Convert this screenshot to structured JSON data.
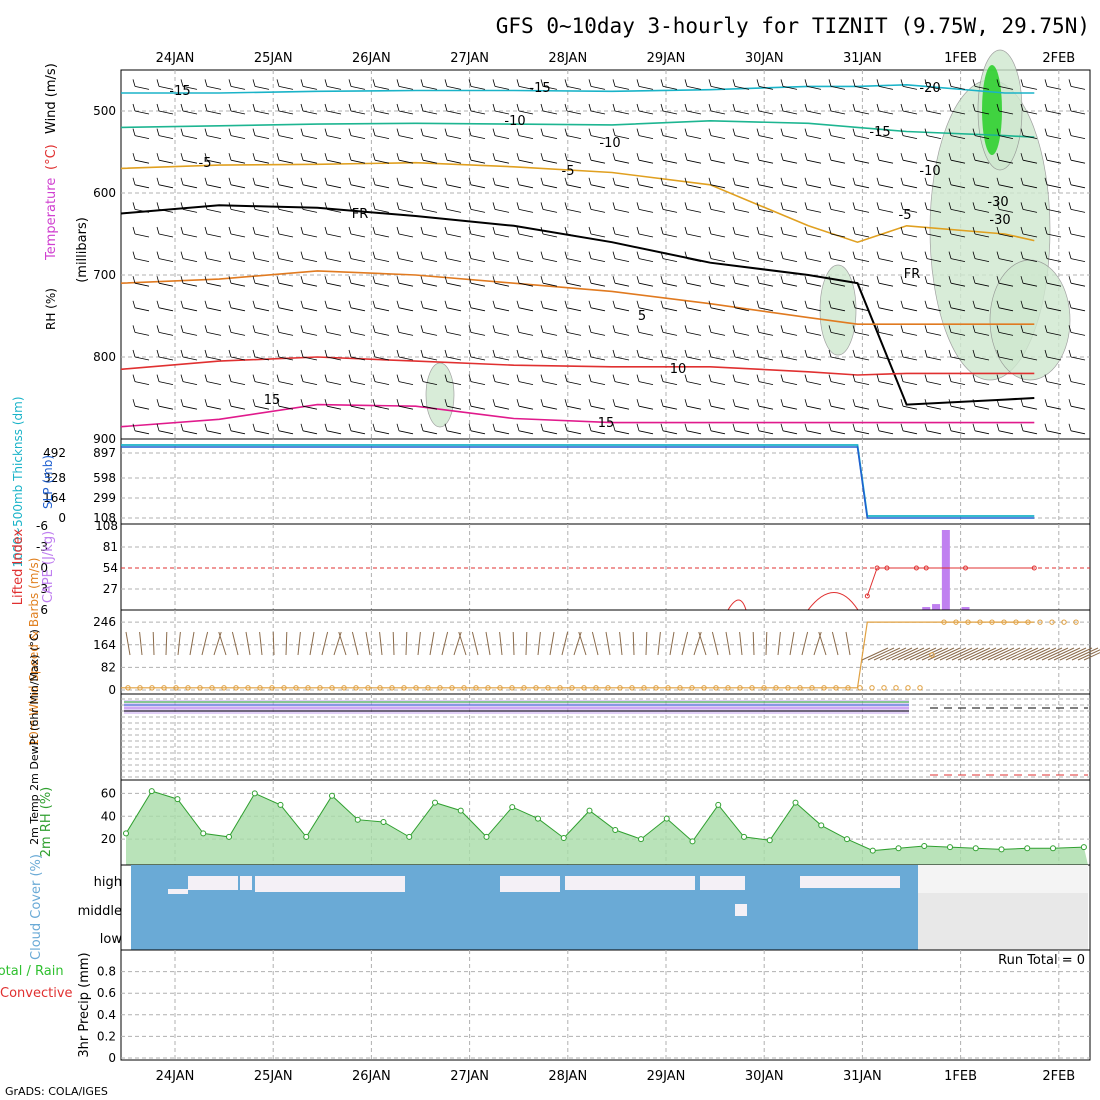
{
  "title": "GFS 0~10day 3-hourly for TIZNIT (9.75W, 29.75N)",
  "credit": "GrADS: COLA/IGES",
  "dates": [
    "24JAN",
    "25JAN",
    "26JAN",
    "27JAN",
    "28JAN",
    "29JAN",
    "30JAN",
    "31JAN",
    "1FEB",
    "2FEB"
  ],
  "colors": {
    "temp_m15": "#1ab3c8",
    "temp_m10": "#1db591",
    "temp_m5": "#e0a020",
    "temp_fr": "#000000",
    "temp_5": "#e07a20",
    "temp_10": "#e03030",
    "temp_15": "#e01a8c",
    "thickness": "#1ab3c8",
    "slp": "#2060d0",
    "cape": "#c080f0",
    "li": "#e03030",
    "wind": "#e0a040",
    "barb": "#8a6a4a",
    "rh": "#30a030",
    "cloud": "#6aaad6"
  },
  "chart_data": [
    {
      "id": "upper-air",
      "type": "line",
      "ylabel_parts": [
        "RH (%)",
        "Temperature",
        "(°C)",
        "Wind (m/s)"
      ],
      "ylabel2": "(millibars)",
      "y_ticks": [
        "500",
        "600",
        "700",
        "800",
        "900"
      ],
      "ylim": [
        450,
        900
      ],
      "y_reversed": true,
      "contour_labels": [
        "-15",
        "-15",
        "-20",
        "-10",
        "-15",
        "-10",
        "-5",
        "-5",
        "-10",
        "-5",
        "FR",
        "FR",
        "5",
        "10",
        "15",
        "15",
        "-30",
        "-30"
      ],
      "series": [
        {
          "name": "-15",
          "level_mb": [
            478,
            478,
            476,
            475,
            475,
            476,
            474,
            470,
            470,
            468,
            478,
            478
          ]
        },
        {
          "name": "-10",
          "level_mb": [
            520,
            518,
            516,
            515,
            516,
            517,
            512,
            515,
            520,
            525,
            530,
            532
          ]
        },
        {
          "name": "-5",
          "level_mb": [
            570,
            566,
            565,
            563,
            568,
            575,
            590,
            640,
            660,
            640,
            650,
            658
          ]
        },
        {
          "name": "FR",
          "level_mb": [
            625,
            615,
            618,
            628,
            640,
            660,
            685,
            700,
            710,
            858,
            852,
            850
          ]
        },
        {
          "name": "5",
          "level_mb": [
            710,
            705,
            695,
            700,
            710,
            720,
            735,
            752,
            760,
            760,
            760,
            760
          ]
        },
        {
          "name": "10",
          "level_mb": [
            815,
            805,
            800,
            805,
            810,
            812,
            812,
            818,
            822,
            820,
            820,
            820
          ]
        },
        {
          "name": "15",
          "level_mb": [
            885,
            876,
            858,
            860,
            875,
            880,
            880,
            880,
            880,
            880,
            880,
            880
          ]
        }
      ]
    },
    {
      "id": "thickness-slp",
      "type": "line",
      "ylabel_left": "1000~500mb Thicknss (dm)",
      "ylabel_right": "SLP (mb)",
      "ticks_left": [
        "492",
        "328",
        "164",
        "0"
      ],
      "ticks_right": [
        "897",
        "598",
        "299",
        "108"
      ],
      "x": [
        0,
        1,
        2,
        3,
        4,
        5,
        6,
        7,
        7.5,
        7.6,
        8,
        9,
        9.3
      ],
      "thickness_dm": [
        492,
        492,
        492,
        492,
        492,
        492,
        492,
        492,
        492,
        0,
        0,
        0,
        0
      ],
      "slp_mb": [
        897,
        897,
        897,
        897,
        897,
        897,
        897,
        897,
        897,
        108,
        108,
        108,
        108
      ]
    },
    {
      "id": "li-cape",
      "type": "bar",
      "ylabel_left": "Lifted Index",
      "ylabel_right": "CAPE (J/kg)",
      "ticks_left": [
        "-6",
        "-3",
        "0",
        "3",
        "6"
      ],
      "ticks_right": [
        "108",
        "81",
        "54",
        "27",
        ""
      ],
      "cape_bars": [
        {
          "x": 8.2,
          "value": 4
        },
        {
          "x": 8.3,
          "value": 8
        },
        {
          "x": 8.4,
          "value": 108
        },
        {
          "x": 8.6,
          "value": 4
        }
      ],
      "li_values": [
        {
          "x": 7.6,
          "value": 4
        },
        {
          "x": 7.7,
          "value": 0
        },
        {
          "x": 7.8,
          "value": 0
        },
        {
          "x": 8.1,
          "value": 0
        },
        {
          "x": 8.2,
          "value": 0
        },
        {
          "x": 8.6,
          "value": 0
        },
        {
          "x": 9.3,
          "value": 0
        }
      ]
    },
    {
      "id": "wind10m",
      "type": "line",
      "ylabel": "10m Wind Speed & Barbs (m/s)",
      "y_ticks": [
        "246",
        "164",
        "82",
        "0"
      ],
      "ylim": [
        0,
        290
      ],
      "wind_mps": [
        8,
        8,
        8,
        8,
        8,
        8,
        8,
        8,
        8,
        246,
        246,
        246,
        246
      ],
      "x": [
        0,
        1,
        2,
        3,
        4,
        5,
        6,
        7,
        7.5,
        7.6,
        8,
        9,
        9.3
      ]
    },
    {
      "id": "temp2m",
      "type": "line",
      "ylabel": "2m Temp 2m DewPt (6hr Min/Max) (°C)"
    },
    {
      "id": "rh2m",
      "type": "area",
      "ylabel": "2m RH (%)",
      "y_ticks": [
        "60",
        "40",
        "20"
      ],
      "ylim": [
        0,
        70
      ],
      "x": [
        0,
        0.25,
        0.5,
        0.75,
        1,
        1.25,
        1.5,
        1.75,
        2,
        2.25,
        2.5,
        2.75,
        3,
        3.25,
        3.5,
        3.75,
        4,
        4.25,
        4.5,
        4.75,
        5,
        5.25,
        5.5,
        5.75,
        6,
        6.25,
        6.5,
        6.75,
        7,
        7.25,
        7.5,
        7.75,
        8,
        8.25,
        8.5,
        8.75,
        9,
        9.3
      ],
      "rh_pct": [
        25,
        62,
        55,
        25,
        22,
        60,
        50,
        22,
        58,
        37,
        35,
        22,
        52,
        45,
        22,
        48,
        38,
        21,
        45,
        28,
        20,
        38,
        18,
        50,
        22,
        19,
        52,
        32,
        20,
        10,
        12,
        14,
        13,
        12,
        11,
        12,
        12,
        13
      ]
    },
    {
      "id": "cloud",
      "type": "heatmap",
      "ylabel": "Cloud Cover (%)",
      "levels": [
        "high",
        "middle",
        "low"
      ]
    },
    {
      "id": "precip",
      "type": "bar",
      "ylabel_left": "Total / Rain",
      "ylabel_left2": "Convective",
      "ylabel": "3hr Precip (mm)",
      "y_ticks": [
        "0.8",
        "0.6",
        "0.4",
        "0.2",
        "0"
      ],
      "ylim": [
        0,
        1.0
      ],
      "run_total": "Run Total = 0"
    }
  ]
}
